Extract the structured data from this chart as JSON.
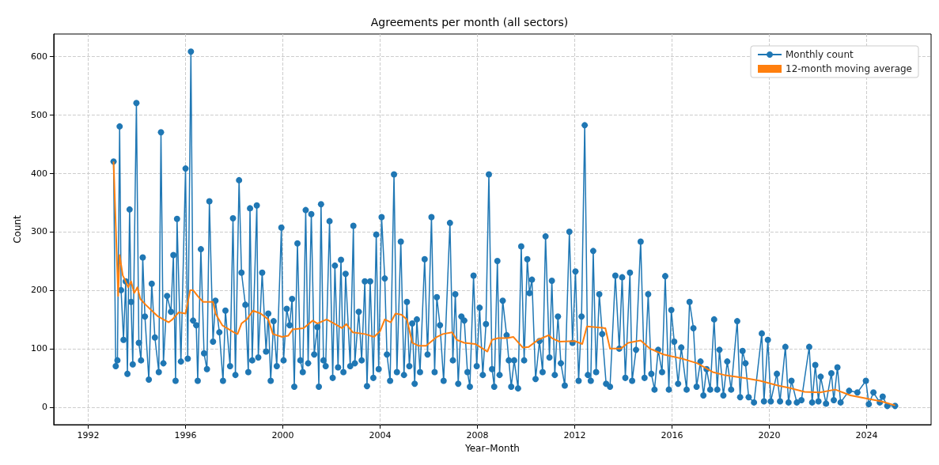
{
  "chart_data": {
    "type": "line",
    "title": "Agreements per month (all sectors)",
    "xlabel": "Year–Month",
    "ylabel": "Count",
    "xlim": [
      1990.58,
      2026.65
    ],
    "xticks": [
      1992,
      1996,
      2000,
      2004,
      2008,
      2012,
      2016,
      2020,
      2024
    ],
    "ylim": [
      -30,
      638
    ],
    "yticks": [
      0,
      100,
      200,
      300,
      400,
      500,
      600
    ],
    "grid": true,
    "legend": "top right",
    "marker": "circle",
    "series": [
      {
        "name": "Monthly count",
        "color": "#1f77b4",
        "x": [
          1993.04,
          1993.13,
          1993.2,
          1993.29,
          1993.35,
          1993.45,
          1993.54,
          1993.61,
          1993.7,
          1993.76,
          1993.83,
          1993.98,
          1994.08,
          1994.17,
          1994.24,
          1994.33,
          1994.49,
          1994.61,
          1994.74,
          1994.9,
          1994.99,
          1995.09,
          1995.24,
          1995.4,
          1995.5,
          1995.59,
          1995.65,
          1995.81,
          1996.0,
          1996.09,
          1996.22,
          1996.31,
          1996.44,
          1996.5,
          1996.63,
          1996.76,
          1996.88,
          1996.98,
          1997.13,
          1997.23,
          1997.39,
          1997.54,
          1997.64,
          1997.83,
          1997.95,
          1998.05,
          1998.2,
          1998.3,
          1998.46,
          1998.58,
          1998.65,
          1998.74,
          1998.93,
          1998.99,
          1999.15,
          1999.31,
          1999.4,
          1999.5,
          1999.62,
          1999.75,
          1999.94,
          2000.03,
          2000.16,
          2000.28,
          2000.38,
          2000.47,
          2000.6,
          2000.72,
          2000.82,
          2000.94,
          2001.04,
          2001.17,
          2001.29,
          2001.42,
          2001.48,
          2001.57,
          2001.67,
          2001.76,
          2001.92,
          2002.05,
          2002.14,
          2002.27,
          2002.39,
          2002.49,
          2002.58,
          2002.77,
          2002.9,
          2002.96,
          2003.12,
          2003.24,
          2003.37,
          2003.46,
          2003.59,
          2003.72,
          2003.84,
          2003.94,
          2004.06,
          2004.19,
          2004.28,
          2004.41,
          2004.57,
          2004.69,
          2004.85,
          2004.98,
          2005.1,
          2005.2,
          2005.32,
          2005.42,
          2005.51,
          2005.64,
          2005.83,
          2005.95,
          2006.11,
          2006.24,
          2006.33,
          2006.46,
          2006.61,
          2006.87,
          2006.99,
          2007.09,
          2007.21,
          2007.34,
          2007.46,
          2007.59,
          2007.69,
          2007.84,
          2007.97,
          2008.09,
          2008.22,
          2008.35,
          2008.47,
          2008.6,
          2008.69,
          2008.82,
          2008.91,
          2009.04,
          2009.2,
          2009.29,
          2009.39,
          2009.51,
          2009.67,
          2009.8,
          2009.92,
          2010.05,
          2010.14,
          2010.24,
          2010.39,
          2010.55,
          2010.68,
          2010.8,
          2010.96,
          2011.06,
          2011.18,
          2011.31,
          2011.43,
          2011.59,
          2011.78,
          2011.91,
          2012.03,
          2012.16,
          2012.28,
          2012.41,
          2012.54,
          2012.66,
          2012.76,
          2012.88,
          2013.01,
          2013.13,
          2013.29,
          2013.45,
          2013.67,
          2013.83,
          2013.95,
          2014.08,
          2014.27,
          2014.36,
          2014.52,
          2014.71,
          2014.87,
          2015.02,
          2015.15,
          2015.28,
          2015.43,
          2015.59,
          2015.72,
          2015.87,
          2015.97,
          2016.09,
          2016.25,
          2016.38,
          2016.6,
          2016.72,
          2016.88,
          2017.01,
          2017.17,
          2017.29,
          2017.42,
          2017.57,
          2017.73,
          2017.86,
          2017.95,
          2018.11,
          2018.27,
          2018.43,
          2018.68,
          2018.8,
          2018.9,
          2019.02,
          2019.15,
          2019.37,
          2019.69,
          2019.78,
          2019.94,
          2020.06,
          2020.31,
          2020.44,
          2020.66,
          2020.79,
          2020.91,
          2021.13,
          2021.32,
          2021.64,
          2021.76,
          2021.89,
          2022.02,
          2022.11,
          2022.33,
          2022.55,
          2022.65,
          2022.8,
          2022.93,
          2023.28,
          2023.62,
          2023.97,
          2024.09,
          2024.28,
          2024.54,
          2024.66,
          2024.85,
          2025.17
        ],
        "values": [
          420,
          70,
          80,
          480,
          200,
          115,
          215,
          57,
          338,
          180,
          73,
          520,
          110,
          80,
          256,
          155,
          47,
          211,
          119,
          60,
          470,
          75,
          190,
          163,
          260,
          45,
          322,
          78,
          408,
          83,
          608,
          148,
          140,
          45,
          270,
          92,
          65,
          352,
          112,
          182,
          128,
          45,
          165,
          70,
          323,
          55,
          388,
          230,
          175,
          60,
          340,
          80,
          345,
          85,
          230,
          95,
          160,
          45,
          147,
          70,
          307,
          80,
          168,
          140,
          185,
          35,
          280,
          80,
          60,
          337,
          75,
          330,
          90,
          137,
          35,
          347,
          80,
          70,
          318,
          50,
          242,
          68,
          252,
          60,
          228,
          70,
          310,
          75,
          163,
          80,
          215,
          36,
          215,
          50,
          295,
          65,
          325,
          220,
          90,
          45,
          398,
          60,
          283,
          55,
          180,
          70,
          143,
          40,
          150,
          60,
          253,
          90,
          325,
          60,
          188,
          140,
          45,
          315,
          80,
          193,
          40,
          155,
          148,
          60,
          35,
          225,
          70,
          170,
          55,
          142,
          398,
          65,
          35,
          250,
          55,
          182,
          123,
          80,
          35,
          80,
          32,
          275,
          80,
          253,
          195,
          218,
          48,
          113,
          60,
          292,
          85,
          216,
          55,
          155,
          75,
          37,
          300,
          110,
          232,
          45,
          155,
          482,
          55,
          45,
          267,
          60,
          193,
          125,
          40,
          35,
          225,
          100,
          222,
          50,
          230,
          45,
          98,
          283,
          50,
          193,
          57,
          30,
          98,
          60,
          224,
          30,
          166,
          112,
          40,
          102,
          30,
          180,
          135,
          35,
          78,
          20,
          65,
          30,
          150,
          30,
          98,
          20,
          78,
          30,
          147,
          17,
          96,
          75,
          17,
          8,
          126,
          10,
          115,
          10,
          57,
          10,
          103,
          8,
          45,
          8,
          12,
          103,
          8,
          72,
          10,
          52,
          6,
          58,
          12,
          68,
          8,
          28,
          25,
          45,
          5,
          25,
          8,
          18,
          2,
          2
        ]
      },
      {
        "name": "12-month moving average",
        "color": "#ff7f0e",
        "marker": "none",
        "x": [
          1993.04,
          1993.23,
          1993.29,
          1993.42,
          1993.54,
          1993.64,
          1993.76,
          1993.89,
          1994.02,
          1994.14,
          1994.36,
          1994.61,
          1994.87,
          1995.31,
          1995.46,
          1995.72,
          1996.0,
          1996.19,
          1996.31,
          1996.5,
          1996.72,
          1997.13,
          1997.23,
          1997.51,
          1997.7,
          1997.98,
          1998.14,
          1998.3,
          1998.52,
          1998.77,
          1999.09,
          1999.4,
          1999.59,
          1999.97,
          2000.22,
          2000.41,
          2000.85,
          2001.23,
          2001.42,
          2001.8,
          2002.11,
          2002.43,
          2002.61,
          2002.87,
          2003.37,
          2003.75,
          2004.0,
          2004.19,
          2004.44,
          2004.63,
          2004.88,
          2005.1,
          2005.32,
          2005.57,
          2005.89,
          2006.33,
          2006.58,
          2006.96,
          2007.15,
          2007.46,
          2007.91,
          2008.22,
          2008.41,
          2008.6,
          2008.85,
          2009.23,
          2009.48,
          2009.86,
          2010.11,
          2010.49,
          2010.93,
          2011.06,
          2011.37,
          2012.0,
          2012.31,
          2012.5,
          2013.26,
          2013.45,
          2013.89,
          2014.2,
          2014.71,
          2015.09,
          2015.65,
          2016.41,
          2017.04,
          2017.67,
          2018.14,
          2018.93,
          2019.62,
          2020.35,
          2020.82,
          2021.45,
          2022.08,
          2022.71,
          2023.34,
          2023.97,
          2024.6,
          2025.17
        ],
        "values": [
          420,
          190,
          260,
          225,
          215,
          205,
          215,
          195,
          205,
          185,
          175,
          165,
          155,
          145,
          150,
          162,
          160,
          200,
          200,
          190,
          180,
          180,
          160,
          140,
          135,
          128,
          125,
          143,
          150,
          165,
          160,
          150,
          125,
          120,
          122,
          133,
          135,
          148,
          143,
          150,
          143,
          135,
          142,
          128,
          125,
          120,
          130,
          150,
          145,
          160,
          158,
          150,
          110,
          105,
          105,
          120,
          125,
          128,
          115,
          110,
          108,
          100,
          95,
          115,
          118,
          118,
          120,
          102,
          103,
          115,
          123,
          118,
          112,
          113,
          108,
          138,
          135,
          100,
          100,
          110,
          114,
          100,
          90,
          83,
          75,
          60,
          55,
          50,
          45,
          37,
          33,
          26,
          25,
          30,
          20,
          15,
          10,
          3
        ]
      }
    ]
  }
}
